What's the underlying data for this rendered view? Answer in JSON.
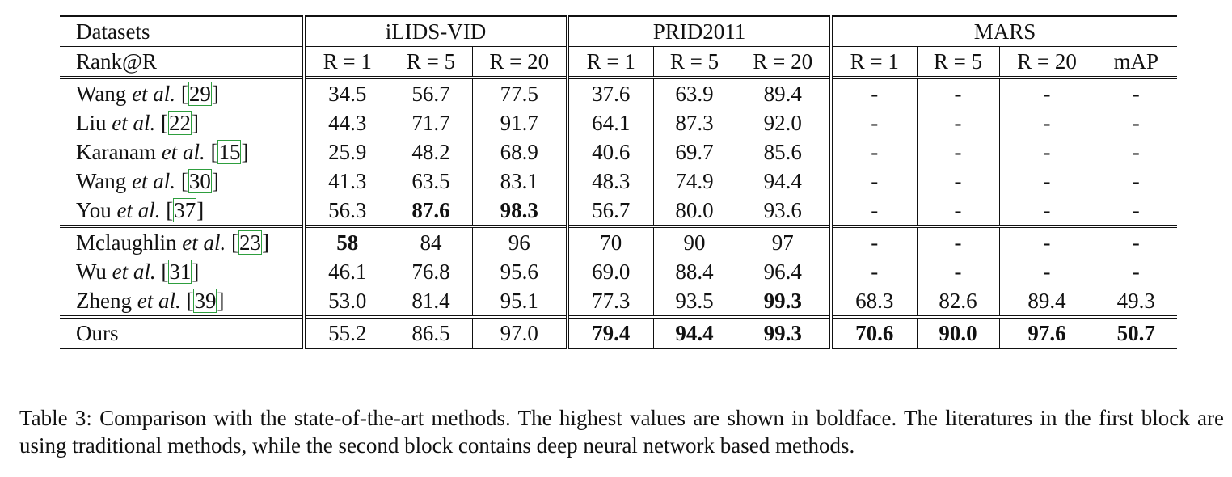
{
  "table": {
    "header": {
      "datasets_label": "Datasets",
      "rank_label": "Rank@R",
      "groups": [
        "iLIDS-VID",
        "PRID2011",
        "MARS"
      ],
      "columns": [
        "R = 1",
        "R = 5",
        "R = 20",
        "R = 1",
        "R = 5",
        "R = 20",
        "R = 1",
        "R = 5",
        "R = 20",
        "mAP"
      ]
    },
    "blocks": [
      {
        "rows": [
          {
            "author": "Wang ",
            "etal": "et al.",
            "ref_open": " [",
            "ref": "29",
            "ref_close": "]",
            "values": [
              "34.5",
              "56.7",
              "77.5",
              "37.6",
              "63.9",
              "89.4",
              "-",
              "-",
              "-",
              "-"
            ],
            "bold": [
              false,
              false,
              false,
              false,
              false,
              false,
              false,
              false,
              false,
              false
            ]
          },
          {
            "author": "Liu ",
            "etal": "et al.",
            "ref_open": " [",
            "ref": "22",
            "ref_close": "]",
            "values": [
              "44.3",
              "71.7",
              "91.7",
              "64.1",
              "87.3",
              "92.0",
              "-",
              "-",
              "-",
              "-"
            ],
            "bold": [
              false,
              false,
              false,
              false,
              false,
              false,
              false,
              false,
              false,
              false
            ]
          },
          {
            "author": "Karanam ",
            "etal": "et al.",
            "ref_open": " [",
            "ref": "15",
            "ref_close": "]",
            "values": [
              "25.9",
              "48.2",
              "68.9",
              "40.6",
              "69.7",
              "85.6",
              "-",
              "-",
              "-",
              "-"
            ],
            "bold": [
              false,
              false,
              false,
              false,
              false,
              false,
              false,
              false,
              false,
              false
            ]
          },
          {
            "author": "Wang ",
            "etal": "et al.",
            "ref_open": " [",
            "ref": "30",
            "ref_close": "]",
            "values": [
              "41.3",
              "63.5",
              "83.1",
              "48.3",
              "74.9",
              "94.4",
              "-",
              "-",
              "-",
              "-"
            ],
            "bold": [
              false,
              false,
              false,
              false,
              false,
              false,
              false,
              false,
              false,
              false
            ]
          },
          {
            "author": "You ",
            "etal": "et al.",
            "ref_open": " [",
            "ref": "37",
            "ref_close": "]",
            "values": [
              "56.3",
              "87.6",
              "98.3",
              "56.7",
              "80.0",
              "93.6",
              "-",
              "-",
              "-",
              "-"
            ],
            "bold": [
              false,
              true,
              true,
              false,
              false,
              false,
              false,
              false,
              false,
              false
            ]
          }
        ]
      },
      {
        "rows": [
          {
            "author": "Mclaughlin ",
            "etal": "et al.",
            "ref_open": " [",
            "ref": "23",
            "ref_close": "]",
            "values": [
              "58",
              "84",
              "96",
              "70",
              "90",
              "97",
              "-",
              "-",
              "-",
              "-"
            ],
            "bold": [
              true,
              false,
              false,
              false,
              false,
              false,
              false,
              false,
              false,
              false
            ]
          },
          {
            "author": "Wu ",
            "etal": "et al.",
            "ref_open": " [",
            "ref": "31",
            "ref_close": "]",
            "values": [
              "46.1",
              "76.8",
              "95.6",
              "69.0",
              "88.4",
              "96.4",
              "-",
              "-",
              "-",
              "-"
            ],
            "bold": [
              false,
              false,
              false,
              false,
              false,
              false,
              false,
              false,
              false,
              false
            ]
          },
          {
            "author": "Zheng ",
            "etal": "et al.",
            "ref_open": " [",
            "ref": "39",
            "ref_close": "]",
            "values": [
              "53.0",
              "81.4",
              "95.1",
              "77.3",
              "93.5",
              "99.3",
              "68.3",
              "82.6",
              "89.4",
              "49.3"
            ],
            "bold": [
              false,
              false,
              false,
              false,
              false,
              true,
              false,
              false,
              false,
              false
            ]
          }
        ]
      }
    ],
    "ours": {
      "label": "Ours",
      "values": [
        "55.2",
        "86.5",
        "97.0",
        "79.4",
        "94.4",
        "99.3",
        "70.6",
        "90.0",
        "97.6",
        "50.7"
      ],
      "bold": [
        false,
        false,
        false,
        true,
        true,
        true,
        true,
        true,
        true,
        true
      ]
    }
  },
  "caption": "Table 3: Comparison with the state-of-the-art methods. The highest values are shown in boldface. The literatures in the first block are using traditional methods, while the second block contains deep neural network based methods."
}
